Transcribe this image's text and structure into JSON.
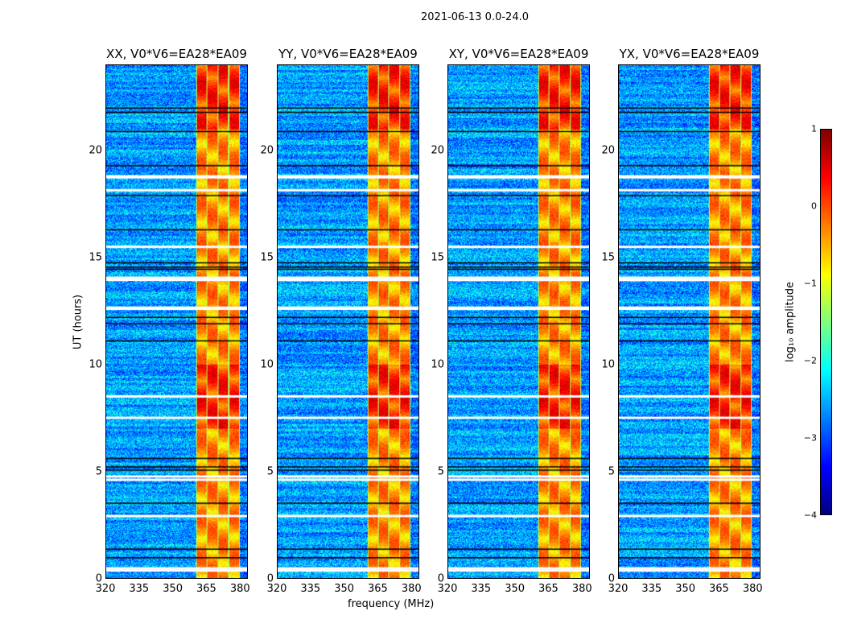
{
  "chart_data": {
    "type": "heatmap",
    "title": "2021-06-13 0.0-24.0",
    "xlabel": "frequency (MHz)",
    "ylabel": "UT (hours)",
    "xlim": [
      320,
      383.5
    ],
    "ylim": [
      0,
      24
    ],
    "xticks": [
      "320",
      "335",
      "350",
      "365",
      "380"
    ],
    "yticks": [
      "0",
      "5",
      "10",
      "15",
      "20"
    ],
    "panels": [
      {
        "title": "XX, V0*V6=EA28*EA09",
        "rfi_band_mhz": [
          360.3,
          380
        ]
      },
      {
        "title": "YY, V0*V6=EA28*EA09",
        "rfi_band_mhz": [
          360.3,
          379.6
        ]
      },
      {
        "title": "XY, V0*V6=EA28*EA09",
        "rfi_band_mhz": [
          360.3,
          379.6
        ]
      },
      {
        "title": "YX, V0*V6=EA28*EA09",
        "rfi_band_mhz": [
          360.3,
          379.6
        ]
      }
    ],
    "flagged_hours_white": [
      0.35,
      0.45,
      13.95,
      14.05,
      12.6,
      12.65,
      18.75,
      18.8,
      18.15,
      15.5,
      2.9,
      4.6,
      4.75,
      8.5,
      7.5
    ],
    "dark_hours_black": [
      5.05,
      5.2,
      14.45,
      14.55,
      14.75,
      16.3,
      17.9,
      19.3,
      20.9,
      21.8,
      22.0,
      0.95,
      1.35,
      3.5,
      5.6,
      11.1,
      11.9,
      12.2
    ],
    "background_log_amp": -2.6,
    "band_log_amp_range": [
      -1.0,
      0.9
    ],
    "colorbar": {
      "label": "log₁₀ amplitude",
      "range": [
        -4,
        1
      ],
      "ticks": [
        "1",
        "0",
        "−1",
        "−2",
        "−3",
        "−4"
      ],
      "colormap": "jet"
    }
  }
}
